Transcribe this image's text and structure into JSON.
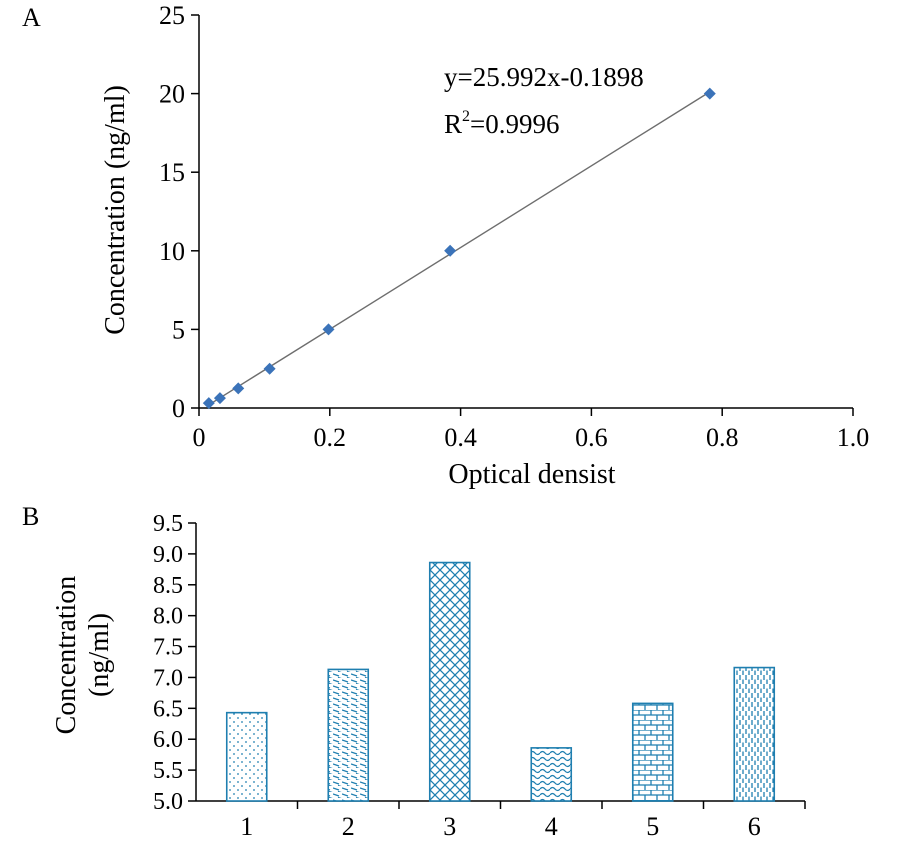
{
  "chart_data": [
    {
      "panel_label": "A",
      "type": "scatter",
      "xlabel": "Optical densist",
      "ylabel": "Concentration (ng/ml)",
      "xlim": [
        0,
        1.0
      ],
      "ylim": [
        0,
        25
      ],
      "xticks": [
        "0",
        "0.2",
        "0.4",
        "0.6",
        "0.8",
        "1.0"
      ],
      "yticks": [
        "0",
        "5",
        "10",
        "15",
        "20",
        "25"
      ],
      "points": [
        {
          "x": 0.015,
          "y": 0.3125
        },
        {
          "x": 0.032,
          "y": 0.625
        },
        {
          "x": 0.06,
          "y": 1.25
        },
        {
          "x": 0.108,
          "y": 2.5
        },
        {
          "x": 0.198,
          "y": 5
        },
        {
          "x": 0.384,
          "y": 10
        },
        {
          "x": 0.781,
          "y": 20
        }
      ],
      "trendline": {
        "slope": 25.992,
        "intercept": -0.1898,
        "x_range": [
          0.013,
          0.781
        ]
      },
      "equation": "y=25.992x-0.1898",
      "r2_prefix": "R",
      "r2_sup": "2",
      "r2_value": "=0.9996",
      "marker_color": "#3b73b9",
      "line_color": "#6e6e6e"
    },
    {
      "panel_label": "B",
      "type": "bar",
      "ylabel_line1": "Concentration",
      "ylabel_line2": "(ng/ml)",
      "ylim": [
        5.0,
        9.5
      ],
      "yticks": [
        "5.0",
        "5.5",
        "6.0",
        "6.5",
        "7.0",
        "7.5",
        "8.0",
        "8.5",
        "9.0",
        "9.5"
      ],
      "categories": [
        "1",
        "2",
        "3",
        "4",
        "5",
        "6"
      ],
      "values": [
        6.43,
        7.13,
        8.86,
        5.86,
        6.58,
        7.16
      ],
      "bar_color": "#1f7fb0",
      "patterns": [
        "dots",
        "diag-dash",
        "crosshatch",
        "wave",
        "brick",
        "vdash"
      ]
    }
  ]
}
